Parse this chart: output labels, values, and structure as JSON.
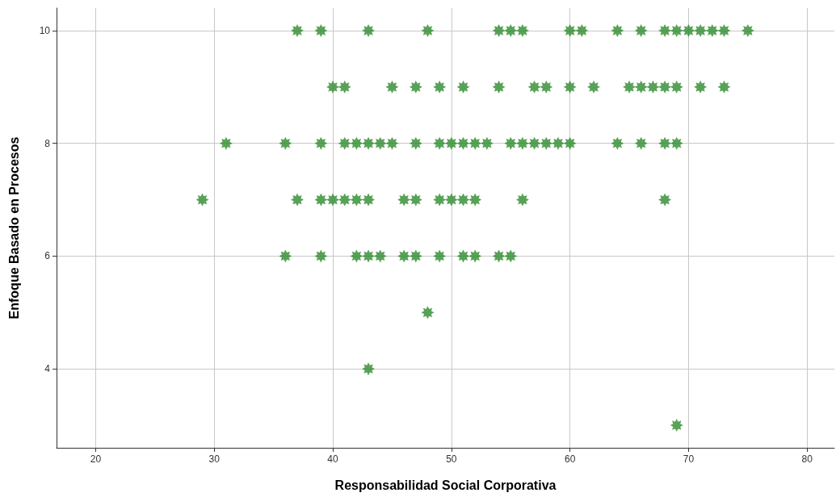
{
  "chart_data": {
    "type": "scatter",
    "xlabel": "Responsabilidad Social Corporativa",
    "ylabel": "Enfoque Basado en Procesos",
    "x": [
      37,
      39,
      43,
      48,
      54,
      55,
      56,
      60,
      61,
      64,
      66,
      68,
      69,
      70,
      71,
      72,
      73,
      75,
      40,
      41,
      45,
      47,
      49,
      51,
      54,
      57,
      58,
      60,
      62,
      65,
      66,
      67,
      68,
      69,
      71,
      73,
      31,
      36,
      39,
      41,
      42,
      43,
      44,
      45,
      47,
      49,
      50,
      51,
      52,
      53,
      55,
      56,
      57,
      58,
      59,
      60,
      64,
      66,
      68,
      69,
      29,
      37,
      39,
      40,
      41,
      42,
      43,
      46,
      47,
      49,
      50,
      51,
      52,
      56,
      68,
      36,
      39,
      42,
      43,
      44,
      46,
      47,
      49,
      51,
      52,
      54,
      55,
      48,
      43,
      69
    ],
    "series": [
      {
        "color": "#2e8b2e",
        "values": [
          10,
          10,
          10,
          10,
          10,
          10,
          10,
          10,
          10,
          10,
          10,
          10,
          10,
          10,
          10,
          10,
          10,
          10,
          9,
          9,
          9,
          9,
          9,
          9,
          9,
          9,
          9,
          9,
          9,
          9,
          9,
          9,
          9,
          9,
          9,
          9,
          8,
          8,
          8,
          8,
          8,
          8,
          8,
          8,
          8,
          8,
          8,
          8,
          8,
          8,
          8,
          8,
          8,
          8,
          8,
          8,
          8,
          8,
          8,
          8,
          7,
          7,
          7,
          7,
          7,
          7,
          7,
          7,
          7,
          7,
          7,
          7,
          7,
          7,
          7,
          6,
          6,
          6,
          6,
          6,
          6,
          6,
          6,
          6,
          6,
          6,
          6,
          5,
          4,
          3
        ]
      }
    ],
    "xlim": [
      16.7,
      82.3
    ],
    "xticks": [
      20,
      30,
      40,
      50,
      60,
      70,
      80
    ],
    "ylim": [
      2.6,
      10.4
    ],
    "yticks": [
      4,
      6,
      8,
      10
    ],
    "grid": true,
    "marker": "star"
  }
}
